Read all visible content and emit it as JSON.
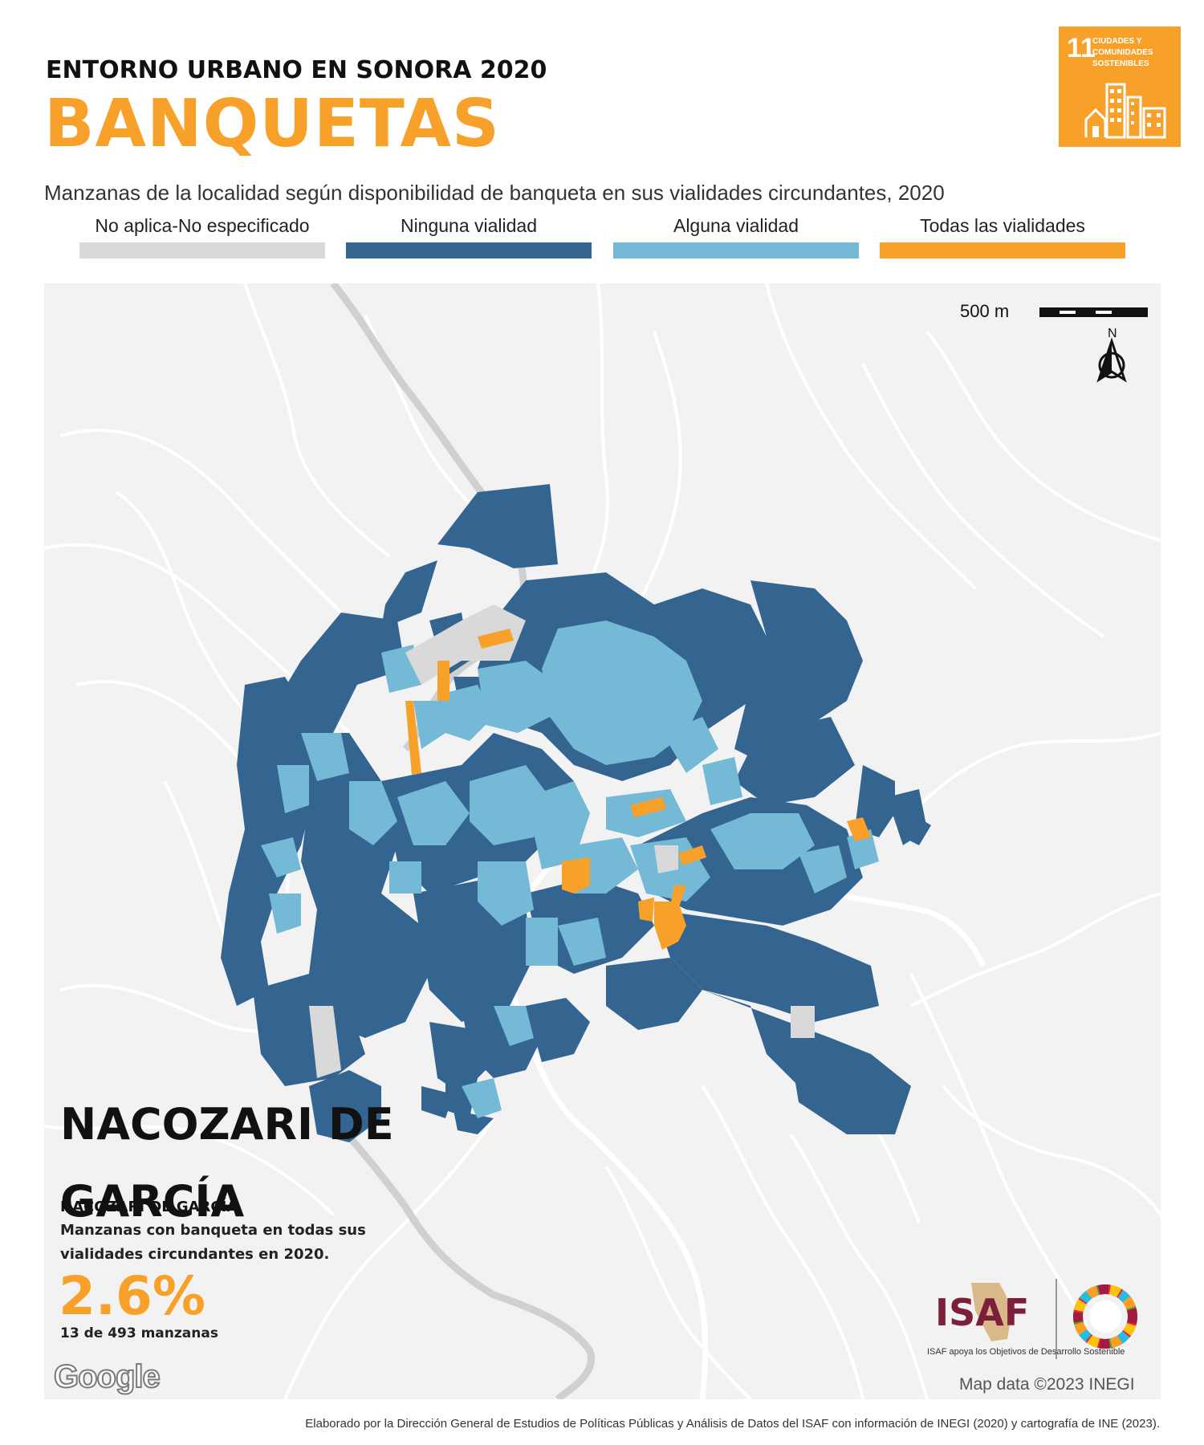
{
  "header": {
    "kicker": "ENTORNO URBANO EN SONORA 2020",
    "title": "BANQUETAS",
    "subtitle": "Manzanas de la localidad según disponibilidad de banqueta en sus vialidades circundantes, 2020"
  },
  "legend": [
    {
      "label": "No aplica-No especificado",
      "color": "#d9d9d9"
    },
    {
      "label": "Ninguna vialidad",
      "color": "#346591"
    },
    {
      "label": "Alguna vialidad",
      "color": "#74b9d6"
    },
    {
      "label": "Todas las vialidades",
      "color": "#f7a12b"
    }
  ],
  "sdg_badge": {
    "number": "11",
    "text": "CIUDADES Y COMUNIDADES SOSTENIBLES",
    "color": "#f7a12b"
  },
  "map": {
    "scale_label": "500 m",
    "north_label": "N",
    "attribution": "Map data ©2023 INEGI",
    "google_logo": "Google",
    "background": "#f2f2f2",
    "road_color": "#ffffff",
    "highway_color": "#d0d0d0"
  },
  "locality": {
    "name": "NACOZARI DE GARCÍA",
    "subname": "NACOZARI DE GARCÍA",
    "stat_description": "Manzanas con banqueta en todas sus vialidades circundantes en 2020.",
    "stat_percent": "2.6%",
    "stat_count": "13 de 493 manzanas"
  },
  "logos": {
    "isaf": "ISAF",
    "isaf_caption": "ISAF apoya los Objetivos de Desarrollo Sostenible",
    "isaf_color": "#7b1f3a"
  },
  "footer": {
    "credit": "Elaborado por la Dirección General de Estudios de Políticas Públicas y Análisis de Datos del ISAF con información de INEGI (2020) y cartografía de INE (2023)."
  }
}
